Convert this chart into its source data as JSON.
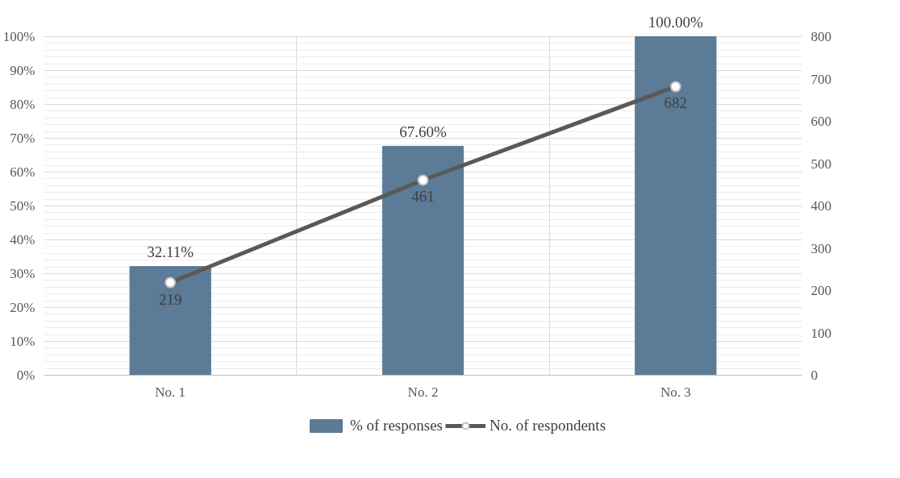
{
  "chart_data": {
    "type": "bar",
    "categories": [
      "No. 1",
      "No. 2",
      "No. 3"
    ],
    "series": [
      {
        "name": "% of responses",
        "color": "#5b7b96",
        "values": [
          32.11,
          67.6,
          100
        ],
        "value_labels": [
          "32.11%",
          "67.60%",
          "100.00%"
        ]
      },
      {
        "name": "No. of respondents",
        "type": "line",
        "axis": "y2",
        "color": "#595959",
        "values": [
          219,
          461,
          682
        ],
        "value_labels": [
          "219",
          "461",
          "682"
        ]
      }
    ],
    "ylim": [
      0,
      100
    ],
    "yticks": [
      {
        "value": 0,
        "label": "0%"
      },
      {
        "value": 10,
        "label": "10%"
      },
      {
        "value": 20,
        "label": "20%"
      },
      {
        "value": 30,
        "label": "30%"
      },
      {
        "value": 40,
        "label": "40%"
      },
      {
        "value": 50,
        "label": "50%"
      },
      {
        "value": 60,
        "label": "60%"
      },
      {
        "value": 70,
        "label": "70%"
      },
      {
        "value": 80,
        "label": "80%"
      },
      {
        "value": 90,
        "label": "90%"
      },
      {
        "value": 100,
        "label": "100%"
      }
    ],
    "y2lim": [
      0,
      800
    ],
    "y2ticks": [
      0,
      100,
      200,
      300,
      400,
      500,
      600,
      700,
      800
    ],
    "grid": true,
    "legend": "bottom",
    "marker": "circle",
    "line_style": "solid"
  }
}
